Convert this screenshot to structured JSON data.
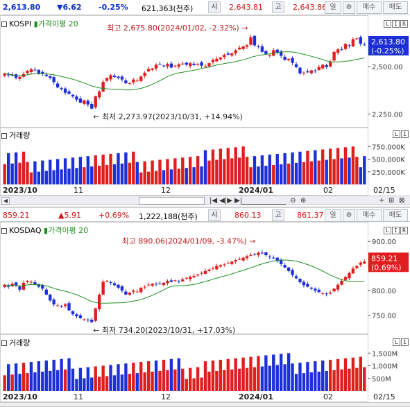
{
  "kospi": {
    "info": {
      "price": "2,613.80",
      "change": "▼6.62",
      "pct": "-0.25%",
      "volume": "621,363(천주)",
      "open_label": "시",
      "open_value": "2,643.81",
      "high_label": "고",
      "high_value": "2,643.86",
      "period": "일",
      "buy_label": "매수",
      "sell_label": "매도"
    },
    "panel_title": "KOSPI",
    "ma_label": "가격이평 20",
    "current_price_tag": "2,613.80",
    "current_pct_tag": "(-0.25%)",
    "high_annotation": "최고 2,675.80(2024/01/02, -2.32%)",
    "low_annotation": "최저 2,273.97(2023/10/31, +14.94%)",
    "volume_title": "거래량"
  },
  "kosdaq": {
    "info": {
      "price": "859.21",
      "change": "▲5.91",
      "pct": "+0.69%",
      "volume": "1,222,188(천주)",
      "open_label": "시",
      "open_value": "860.13",
      "high_label": "고",
      "high_value": "861.37",
      "period": "일",
      "buy_label": "매수",
      "sell_label": "매도"
    },
    "panel_title": "KOSDAQ",
    "ma_label": "가격이평 20",
    "current_price_tag": "859.21",
    "current_pct_tag": "(0.69%)",
    "high_annotation": "최고 890.06(2024/01/09, -3.47%)",
    "low_annotation": "최저 734.20(2023/10/31, +17.03%)",
    "volume_title": "거래량"
  },
  "corner_buttons": [
    "L",
    "I",
    "R"
  ],
  "scroll_controls": [
    "⊖",
    "⊕",
    "□",
    "+",
    "⊞",
    "⊠"
  ],
  "colors": {
    "up": "#e01e1e",
    "down": "#1d2fd8",
    "ma": "#1d8d1d",
    "tag_bg": "#1d2fd8",
    "tag_bg_up": "#e01e1e"
  },
  "chart_data": [
    {
      "type": "candlestick",
      "name": "KOSPI",
      "period": "daily",
      "x_ticks": [
        "2023/10",
        "11",
        "12",
        "2024/01",
        "02",
        "02/15"
      ],
      "y_ticks": [
        2250,
        2500
      ],
      "ylim": [
        2200,
        2720
      ],
      "closes": [
        2464,
        2455,
        2452,
        2440,
        2446,
        2461,
        2478,
        2486,
        2480,
        2465,
        2462,
        2450,
        2440,
        2418,
        2390,
        2382,
        2362,
        2356,
        2342,
        2326,
        2310,
        2322,
        2300,
        2278,
        2343,
        2368,
        2420,
        2440,
        2455,
        2445,
        2440,
        2432,
        2412,
        2412,
        2432,
        2426,
        2448,
        2468,
        2488,
        2490,
        2510,
        2513,
        2503,
        2514,
        2495,
        2505,
        2512,
        2516,
        2510,
        2518,
        2508,
        2515,
        2505,
        2502,
        2518,
        2535,
        2541,
        2548,
        2562,
        2563,
        2570,
        2586,
        2600,
        2607,
        2613,
        2655,
        2612,
        2607,
        2578,
        2567,
        2560,
        2587,
        2573,
        2557,
        2535,
        2541,
        2520,
        2497,
        2464,
        2468,
        2470,
        2480,
        2477,
        2498,
        2510,
        2498,
        2525,
        2578,
        2591,
        2588,
        2620,
        2609,
        2645,
        2649,
        2621,
        2614
      ],
      "ma20_label": "가격이평 20",
      "volume_ticks": [
        "250,000K",
        "500,000K",
        "750,000K"
      ],
      "volume_ylim": [
        0,
        1000000
      ],
      "annotations": [
        {
          "text": "최고 2,675.80(2024/01/02, -2.32%)",
          "value": 2675.8
        },
        {
          "text": "최저 2,273.97(2023/10/31, +14.94%)",
          "value": 2273.97
        }
      ]
    },
    {
      "type": "candlestick",
      "name": "KOSDAQ",
      "period": "daily",
      "x_ticks": [
        "2023/10",
        "11",
        "12",
        "2024/01",
        "02",
        "02/15"
      ],
      "y_ticks": [
        750,
        800,
        850,
        900
      ],
      "ylim": [
        720,
        920
      ],
      "closes": [
        812,
        808,
        814,
        810,
        802,
        816,
        820,
        818,
        812,
        808,
        804,
        792,
        780,
        772,
        770,
        768,
        772,
        760,
        752,
        748,
        744,
        742,
        740,
        736,
        764,
        792,
        818,
        820,
        816,
        811,
        806,
        800,
        792,
        796,
        800,
        798,
        806,
        808,
        812,
        814,
        813,
        814,
        816,
        820,
        818,
        821,
        819,
        823,
        826,
        828,
        830,
        833,
        836,
        840,
        843,
        846,
        850,
        852,
        853,
        856,
        859,
        862,
        864,
        867,
        870,
        872,
        874,
        877,
        876,
        872,
        868,
        866,
        860,
        854,
        847,
        840,
        832,
        825,
        817,
        811,
        808,
        804,
        800,
        797,
        795,
        793,
        796,
        804,
        812,
        820,
        828,
        836,
        845,
        850,
        857,
        859
      ],
      "ma20_label": "가격이평 20",
      "volume_ticks": [
        "500M",
        "1,000M",
        "1,500M"
      ],
      "volume_ylim": [
        0,
        1800
      ],
      "annotations": [
        {
          "text": "최고 890.06(2024/01/09, -3.47%)",
          "value": 890.06
        },
        {
          "text": "최저 734.20(2023/10/31, +17.03%)",
          "value": 734.2
        }
      ]
    }
  ]
}
